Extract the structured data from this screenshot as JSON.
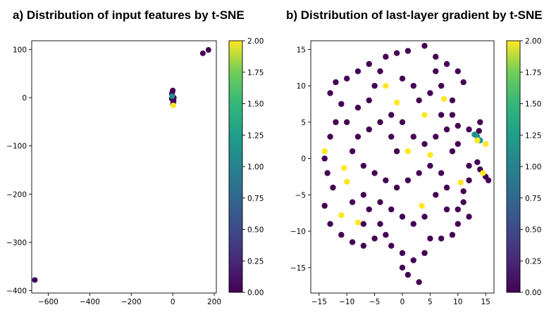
{
  "chart_data": [
    {
      "type": "scatter",
      "title": "a) Distribution of input features by t-SNE",
      "xlabel": "",
      "ylabel": "",
      "xlim": [
        -680,
        210
      ],
      "ylim": [
        -405,
        118
      ],
      "xticks": [
        -600,
        -400,
        -200,
        0,
        200
      ],
      "yticks": [
        100,
        0,
        -100,
        -200,
        -300,
        -400
      ],
      "grid": false,
      "colorbar": {
        "min": 0.0,
        "max": 2.0,
        "ticks": [
          "0.00",
          "0.25",
          "0.50",
          "0.75",
          "1.00",
          "1.25",
          "1.50",
          "1.75",
          "2.00"
        ],
        "colormap": "viridis"
      },
      "points": [
        {
          "x": -665,
          "y": -378,
          "c": 0
        },
        {
          "x": 145,
          "y": 92,
          "c": 0
        },
        {
          "x": 172,
          "y": 99,
          "c": 0
        },
        {
          "x": -3,
          "y": 5,
          "c": 0
        },
        {
          "x": 3,
          "y": -4,
          "c": 0
        },
        {
          "x": -2,
          "y": 12,
          "c": 0
        },
        {
          "x": 2,
          "y": -10,
          "c": 0
        },
        {
          "x": 5,
          "y": 0,
          "c": 0
        },
        {
          "x": -5,
          "y": -2,
          "c": 0
        },
        {
          "x": 0,
          "y": 15,
          "c": 0
        },
        {
          "x": 1,
          "y": -14,
          "c": 0
        },
        {
          "x": -4,
          "y": 8,
          "c": 0
        },
        {
          "x": 4,
          "y": -7,
          "c": 0
        },
        {
          "x": 2,
          "y": -16,
          "c": 2
        },
        {
          "x": -3,
          "y": 3,
          "c": 1
        }
      ]
    },
    {
      "type": "scatter",
      "title": "b) Distribution of last-layer gradient by t-SNE",
      "xlabel": "",
      "ylabel": "",
      "xlim": [
        -16.5,
        16.5
      ],
      "ylim": [
        -18.5,
        16.2
      ],
      "xticks": [
        -15,
        -10,
        -5,
        0,
        5,
        10,
        15
      ],
      "yticks": [
        15,
        10,
        5,
        0,
        -5,
        -10,
        -15
      ],
      "grid": false,
      "colorbar": {
        "min": 0.0,
        "max": 2.0,
        "ticks": [
          "0.00",
          "0.25",
          "0.50",
          "0.75",
          "1.00",
          "1.25",
          "1.50",
          "1.75",
          "2.00"
        ],
        "colormap": "viridis"
      },
      "points": [
        {
          "x": -3,
          "y": 10,
          "c": 2
        },
        {
          "x": -1,
          "y": 7.7,
          "c": 2
        },
        {
          "x": 4,
          "y": 6,
          "c": 2
        },
        {
          "x": 7.5,
          "y": 8.2,
          "c": 2
        },
        {
          "x": -14,
          "y": 1,
          "c": 2
        },
        {
          "x": -10.5,
          "y": -1.3,
          "c": 2
        },
        {
          "x": -10,
          "y": -3.2,
          "c": 2
        },
        {
          "x": 1,
          "y": 1,
          "c": 2
        },
        {
          "x": 5,
          "y": 0.5,
          "c": 2
        },
        {
          "x": 10.5,
          "y": -3.3,
          "c": 2
        },
        {
          "x": 14.5,
          "y": -2,
          "c": 2
        },
        {
          "x": 15,
          "y": 2,
          "c": 2
        },
        {
          "x": -11,
          "y": -7.8,
          "c": 2
        },
        {
          "x": -8,
          "y": -8.8,
          "c": 2
        },
        {
          "x": 3.5,
          "y": -6.5,
          "c": 2
        },
        {
          "x": 13.5,
          "y": 2.5,
          "c": 2
        },
        {
          "x": 13,
          "y": 3.3,
          "c": 1
        },
        {
          "x": 13.5,
          "y": 3,
          "c": 1
        },
        {
          "x": 14,
          "y": 2.5,
          "c": 1
        },
        {
          "x": -3,
          "y": 14,
          "c": 0
        },
        {
          "x": -1,
          "y": 14.5,
          "c": 0
        },
        {
          "x": 1,
          "y": 14.8,
          "c": 0
        },
        {
          "x": 4,
          "y": 15.5,
          "c": 0
        },
        {
          "x": 6,
          "y": 14,
          "c": 0
        },
        {
          "x": 8,
          "y": 13,
          "c": 0
        },
        {
          "x": 10,
          "y": 12,
          "c": 0
        },
        {
          "x": 11,
          "y": 10.5,
          "c": 0
        },
        {
          "x": -8,
          "y": 12,
          "c": 0
        },
        {
          "x": -10,
          "y": 11,
          "c": 0
        },
        {
          "x": -12,
          "y": 10.5,
          "c": 0
        },
        {
          "x": -13,
          "y": 9,
          "c": 0
        },
        {
          "x": -11,
          "y": 7.5,
          "c": 0
        },
        {
          "x": -12,
          "y": 5,
          "c": 0
        },
        {
          "x": -13,
          "y": 3,
          "c": 0
        },
        {
          "x": -14,
          "y": 0,
          "c": 0
        },
        {
          "x": -13.5,
          "y": -2,
          "c": 0
        },
        {
          "x": -12.5,
          "y": -4,
          "c": 0
        },
        {
          "x": -14,
          "y": -6.5,
          "c": 0
        },
        {
          "x": -13,
          "y": -9,
          "c": 0
        },
        {
          "x": -11,
          "y": -10.5,
          "c": 0
        },
        {
          "x": -9,
          "y": -11.5,
          "c": 0
        },
        {
          "x": -7,
          "y": -12,
          "c": 0
        },
        {
          "x": -5,
          "y": -11,
          "c": 0
        },
        {
          "x": -2,
          "y": -12,
          "c": 0
        },
        {
          "x": 0,
          "y": -13,
          "c": 0
        },
        {
          "x": 0,
          "y": -15,
          "c": 0
        },
        {
          "x": 1,
          "y": -16,
          "c": 0
        },
        {
          "x": 3,
          "y": -17,
          "c": 0
        },
        {
          "x": 2,
          "y": -14,
          "c": 0
        },
        {
          "x": 4,
          "y": -13,
          "c": 0
        },
        {
          "x": 5,
          "y": -11,
          "c": 0
        },
        {
          "x": 7,
          "y": -11,
          "c": 0
        },
        {
          "x": 9,
          "y": -10.5,
          "c": 0
        },
        {
          "x": 10,
          "y": -9,
          "c": 0
        },
        {
          "x": 12,
          "y": -8,
          "c": 0
        },
        {
          "x": 11,
          "y": -6,
          "c": 0
        },
        {
          "x": 12,
          "y": -3,
          "c": 0
        },
        {
          "x": 12,
          "y": -1,
          "c": 0
        },
        {
          "x": 13.5,
          "y": -0.5,
          "c": 0
        },
        {
          "x": 14,
          "y": -1.5,
          "c": 0
        },
        {
          "x": 15,
          "y": -2.5,
          "c": 0
        },
        {
          "x": 15.5,
          "y": -3,
          "c": 0
        },
        {
          "x": 14,
          "y": 5,
          "c": 0
        },
        {
          "x": 13.8,
          "y": 3.8,
          "c": 0
        },
        {
          "x": 12,
          "y": 4,
          "c": 0
        },
        {
          "x": 10,
          "y": 4.5,
          "c": 0
        },
        {
          "x": 8,
          "y": 4,
          "c": 0
        },
        {
          "x": 6,
          "y": 3,
          "c": 0
        },
        {
          "x": 4,
          "y": 2,
          "c": 0
        },
        {
          "x": 2,
          "y": 3,
          "c": 0
        },
        {
          "x": 0,
          "y": 5,
          "c": 0
        },
        {
          "x": -2,
          "y": 6,
          "c": 0
        },
        {
          "x": -4,
          "y": 5,
          "c": 0
        },
        {
          "x": -6,
          "y": 4,
          "c": 0
        },
        {
          "x": -8,
          "y": 3,
          "c": 0
        },
        {
          "x": -9,
          "y": 1,
          "c": 0
        },
        {
          "x": -7,
          "y": -1,
          "c": 0
        },
        {
          "x": -5,
          "y": -2,
          "c": 0
        },
        {
          "x": -3,
          "y": -3,
          "c": 0
        },
        {
          "x": -1,
          "y": -4,
          "c": 0
        },
        {
          "x": 1,
          "y": -3,
          "c": 0
        },
        {
          "x": 3,
          "y": -2,
          "c": 0
        },
        {
          "x": 5,
          "y": -1,
          "c": 0
        },
        {
          "x": 7,
          "y": -2,
          "c": 0
        },
        {
          "x": 8,
          "y": -4,
          "c": 0
        },
        {
          "x": 6,
          "y": -5,
          "c": 0
        },
        {
          "x": 4,
          "y": -8,
          "c": 0
        },
        {
          "x": 2,
          "y": -9,
          "c": 0
        },
        {
          "x": 0,
          "y": -8,
          "c": 0
        },
        {
          "x": -2,
          "y": -7,
          "c": 0
        },
        {
          "x": -4,
          "y": -6,
          "c": 0
        },
        {
          "x": -6,
          "y": -7,
          "c": 0
        },
        {
          "x": -7,
          "y": -5,
          "c": 0
        },
        {
          "x": -9,
          "y": -6,
          "c": 0
        },
        {
          "x": -6,
          "y": 8,
          "c": 0
        },
        {
          "x": -5,
          "y": 10,
          "c": 0
        },
        {
          "x": -4,
          "y": 12,
          "c": 0
        },
        {
          "x": 0,
          "y": 11,
          "c": 0
        },
        {
          "x": 2,
          "y": 10,
          "c": 0
        },
        {
          "x": 3,
          "y": 8,
          "c": 0
        },
        {
          "x": 5,
          "y": 9,
          "c": 0
        },
        {
          "x": 7,
          "y": 10,
          "c": 0
        },
        {
          "x": 9,
          "y": 8,
          "c": 0
        },
        {
          "x": 9,
          "y": 6,
          "c": 0
        },
        {
          "x": 7,
          "y": 6,
          "c": 0
        },
        {
          "x": -8,
          "y": 7,
          "c": 0
        },
        {
          "x": -10,
          "y": 5,
          "c": 0
        },
        {
          "x": -7,
          "y": -9,
          "c": 0
        },
        {
          "x": -4,
          "y": -9,
          "c": 0
        },
        {
          "x": -3,
          "y": -10.5,
          "c": 0
        },
        {
          "x": 8,
          "y": -7,
          "c": 0
        },
        {
          "x": 10,
          "y": -7,
          "c": 0
        },
        {
          "x": 11,
          "y": -4.5,
          "c": 0
        },
        {
          "x": 6,
          "y": 12,
          "c": 0
        },
        {
          "x": -6,
          "y": 13,
          "c": 0
        },
        {
          "x": -1,
          "y": 1,
          "c": 0
        },
        {
          "x": -2,
          "y": 3,
          "c": 0
        },
        {
          "x": 9,
          "y": 1,
          "c": 0
        },
        {
          "x": 10,
          "y": 2,
          "c": 0
        }
      ]
    }
  ]
}
